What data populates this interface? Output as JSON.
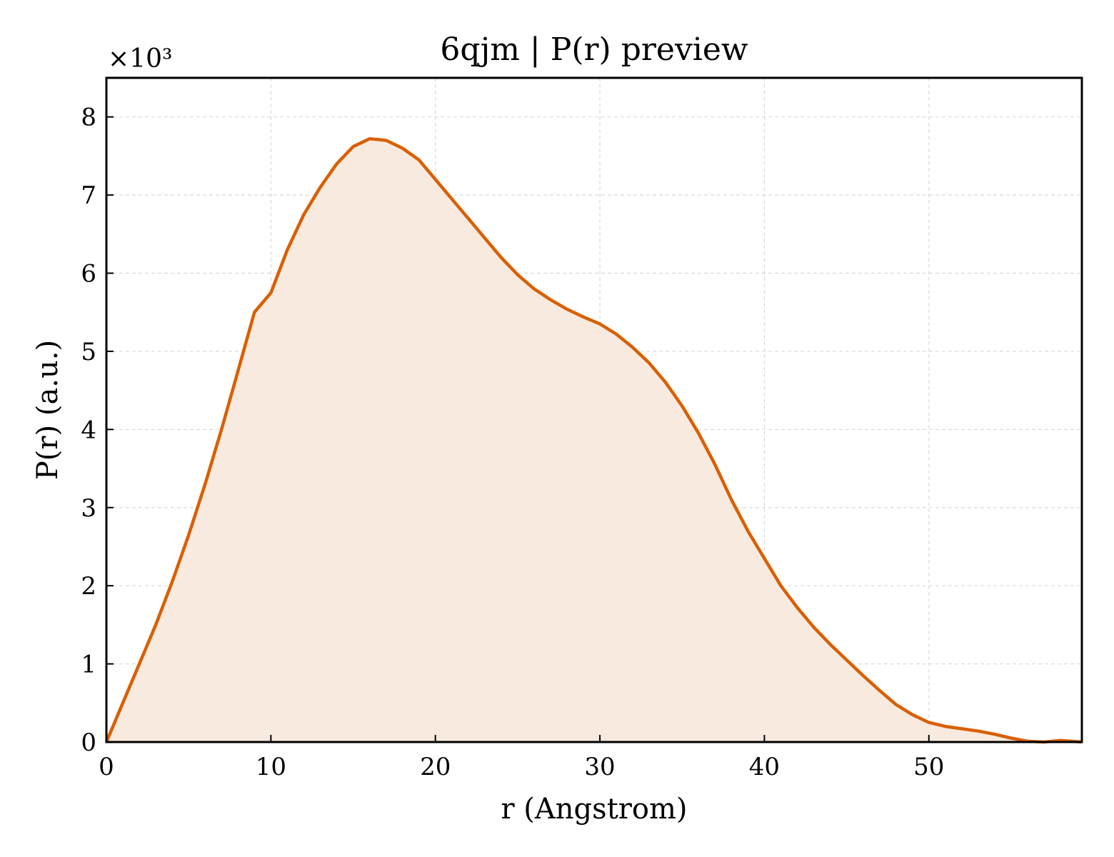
{
  "chart_data": {
    "type": "area",
    "title": "6qjm | P(r) preview",
    "xlabel": "r (Angstrom)",
    "ylabel": "P(r) (a.u.)",
    "y_multiplier": "×10³",
    "xlim": [
      0,
      59.3
    ],
    "ylim": [
      0,
      8.5
    ],
    "x_ticks": [
      0,
      10,
      20,
      30,
      40,
      50
    ],
    "y_ticks": [
      0,
      1,
      2,
      3,
      4,
      5,
      6,
      7,
      8
    ],
    "grid": true,
    "line_color": "#d95f02",
    "fill_color": "#f9eadf",
    "series": [
      {
        "x": [
          0,
          1,
          2,
          3,
          4,
          5,
          6,
          7,
          8,
          9,
          10,
          11,
          12,
          13,
          14,
          15,
          16,
          17,
          18,
          19,
          20,
          21,
          22,
          23,
          24,
          25,
          26,
          27,
          28,
          29,
          30,
          31,
          32,
          33,
          34,
          35,
          36,
          37,
          38,
          39,
          40,
          41,
          42,
          43,
          44,
          45,
          46,
          47,
          48,
          49,
          50,
          51,
          52,
          53,
          54,
          55,
          56,
          57,
          58,
          59.3
        ],
        "y": [
          0,
          0.5,
          1.0,
          1.5,
          2.05,
          2.65,
          3.3,
          4.0,
          4.75,
          5.5,
          5.75,
          6.3,
          6.75,
          7.1,
          7.4,
          7.62,
          7.72,
          7.7,
          7.6,
          7.45,
          7.2,
          6.95,
          6.7,
          6.45,
          6.2,
          5.98,
          5.8,
          5.66,
          5.54,
          5.44,
          5.35,
          5.22,
          5.05,
          4.85,
          4.6,
          4.3,
          3.95,
          3.55,
          3.1,
          2.7,
          2.35,
          2.0,
          1.72,
          1.47,
          1.25,
          1.05,
          0.85,
          0.66,
          0.48,
          0.35,
          0.25,
          0.2,
          0.17,
          0.14,
          0.1,
          0.05,
          0.01,
          0.0,
          0.02,
          0.0
        ]
      }
    ]
  }
}
